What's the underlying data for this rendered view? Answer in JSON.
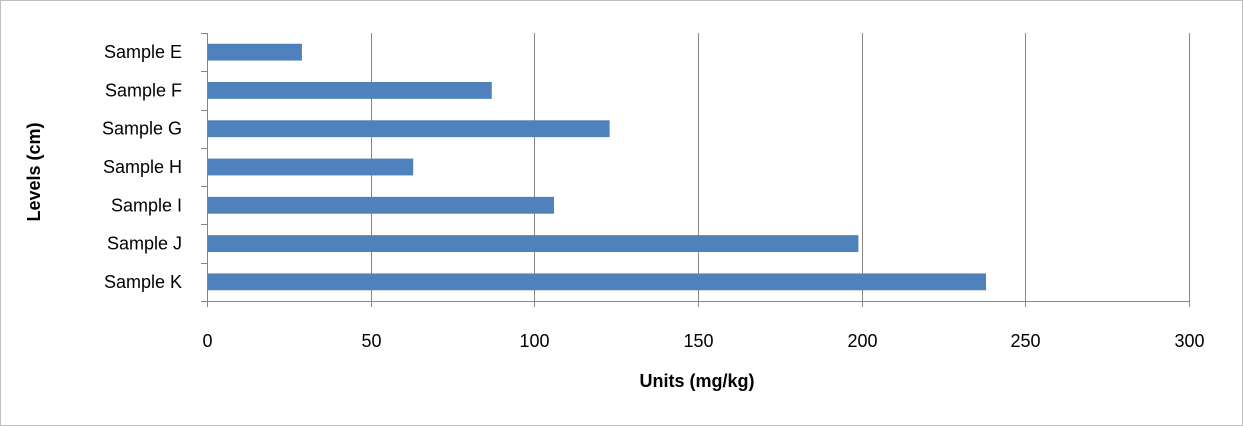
{
  "chart_data": {
    "type": "bar",
    "orientation": "horizontal",
    "categories": [
      "Sample E",
      "Sample F",
      "Sample G",
      "Sample H",
      "Sample I",
      "Sample J",
      "Sample K"
    ],
    "values": [
      29,
      87,
      123,
      63,
      106,
      199,
      238
    ],
    "title": "",
    "xlabel": "Units (mg/kg)",
    "ylabel": "Levels (cm)",
    "xlim": [
      0,
      300
    ],
    "xticks": [
      "0",
      "50",
      "100",
      "150",
      "200",
      "250",
      "300"
    ],
    "grid": true,
    "legend": "none",
    "bar_color": "#4f81bd"
  }
}
